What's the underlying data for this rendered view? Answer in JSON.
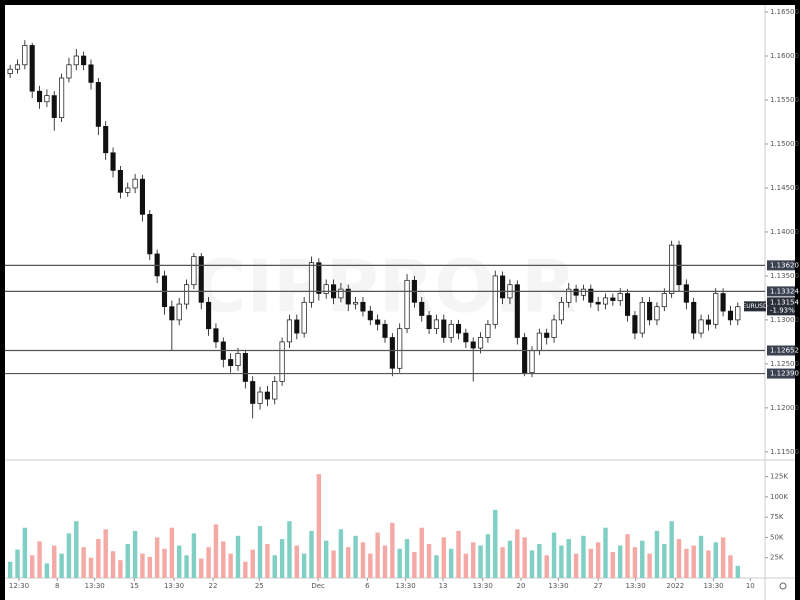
{
  "chart_data": {
    "type": "candlestick",
    "symbol": "EURUSD",
    "watermark": "CIPPRO.R",
    "open": [
      1.158,
      1.1585,
      1.159,
      1.1612,
      1.156,
      1.1548,
      1.1555,
      1.153,
      1.1575,
      1.159,
      1.16,
      1.159,
      1.157,
      1.152,
      1.149,
      1.147,
      1.1445,
      1.145,
      1.146,
      1.142,
      1.1375,
      1.135,
      1.1315,
      1.13,
      1.1318,
      1.134,
      1.1372,
      1.132,
      1.129,
      1.1275,
      1.1255,
      1.1248,
      1.1262,
      1.123,
      1.1205,
      1.1218,
      1.121,
      1.123,
      1.1275,
      1.13,
      1.1285,
      1.132,
      1.1365,
      1.133,
      1.134,
      1.1325,
      1.1335,
      1.1318,
      1.132,
      1.131,
      1.13,
      1.1295,
      1.128,
      1.1245,
      1.129,
      1.1345,
      1.132,
      1.1305,
      1.129,
      1.13,
      1.128,
      1.1295,
      1.1285,
      1.1275,
      1.1268,
      1.128,
      1.1295,
      1.135,
      1.1325,
      1.134,
      1.128,
      1.124,
      1.1265,
      1.1285,
      1.128,
      1.13,
      1.132,
      1.1335,
      1.1328,
      1.1335,
      1.132,
      1.1318,
      1.1325,
      1.1322,
      1.133,
      1.1305,
      1.1285,
      1.132,
      1.13,
      1.1315,
      1.133,
      1.1385,
      1.134,
      1.132,
      1.1285,
      1.13,
      1.1295,
      1.133,
      1.131,
      1.13
    ],
    "high": [
      1.159,
      1.1596,
      1.1618,
      1.1615,
      1.1566,
      1.1562,
      1.156,
      1.158,
      1.1598,
      1.1608,
      1.1605,
      1.1596,
      1.1575,
      1.1526,
      1.1496,
      1.1475,
      1.1456,
      1.1466,
      1.1465,
      1.1425,
      1.138,
      1.1356,
      1.1322,
      1.1325,
      1.1346,
      1.1376,
      1.1376,
      1.1326,
      1.1296,
      1.128,
      1.1262,
      1.1268,
      1.1266,
      1.1236,
      1.1224,
      1.1225,
      1.1236,
      1.128,
      1.1306,
      1.1306,
      1.1326,
      1.1372,
      1.137,
      1.1346,
      1.1346,
      1.1342,
      1.134,
      1.1326,
      1.1326,
      1.1316,
      1.1306,
      1.13,
      1.1285,
      1.1296,
      1.1352,
      1.135,
      1.1326,
      1.131,
      1.1306,
      1.1306,
      1.13,
      1.13,
      1.129,
      1.128,
      1.1286,
      1.13,
      1.1356,
      1.1355,
      1.1346,
      1.1345,
      1.1285,
      1.127,
      1.129,
      1.129,
      1.1306,
      1.1326,
      1.1342,
      1.134,
      1.134,
      1.134,
      1.1326,
      1.133,
      1.133,
      1.1336,
      1.1335,
      1.131,
      1.1326,
      1.1326,
      1.132,
      1.1336,
      1.139,
      1.139,
      1.1346,
      1.1325,
      1.1306,
      1.1306,
      1.1336,
      1.1336,
      1.1316,
      1.132
    ],
    "low": [
      1.1575,
      1.158,
      1.1585,
      1.1552,
      1.154,
      1.1542,
      1.1515,
      1.1525,
      1.157,
      1.1584,
      1.1584,
      1.1562,
      1.151,
      1.1482,
      1.1462,
      1.1438,
      1.144,
      1.1444,
      1.1412,
      1.1368,
      1.1342,
      1.1306,
      1.1265,
      1.1294,
      1.1312,
      1.1335,
      1.1312,
      1.1282,
      1.1268,
      1.1246,
      1.124,
      1.1242,
      1.1222,
      1.1188,
      1.1198,
      1.1202,
      1.1204,
      1.1225,
      1.1268,
      1.1278,
      1.128,
      1.1314,
      1.1322,
      1.1324,
      1.1318,
      1.132,
      1.131,
      1.1312,
      1.1304,
      1.1294,
      1.1288,
      1.1274,
      1.1236,
      1.124,
      1.1285,
      1.1314,
      1.1298,
      1.1284,
      1.1284,
      1.1274,
      1.1274,
      1.1278,
      1.1268,
      1.123,
      1.1262,
      1.1274,
      1.129,
      1.1318,
      1.1318,
      1.1272,
      1.1236,
      1.1235,
      1.126,
      1.1272,
      1.1274,
      1.1295,
      1.1314,
      1.132,
      1.1322,
      1.1314,
      1.131,
      1.1312,
      1.1316,
      1.1316,
      1.1298,
      1.1278,
      1.128,
      1.1294,
      1.1294,
      1.131,
      1.1325,
      1.1332,
      1.1312,
      1.1278,
      1.128,
      1.1288,
      1.129,
      1.1304,
      1.1294,
      1.1294
    ],
    "close": [
      1.1585,
      1.159,
      1.1612,
      1.156,
      1.1548,
      1.1555,
      1.153,
      1.1575,
      1.159,
      1.16,
      1.159,
      1.157,
      1.152,
      1.149,
      1.147,
      1.1445,
      1.145,
      1.146,
      1.142,
      1.1375,
      1.135,
      1.1315,
      1.13,
      1.1318,
      1.134,
      1.1372,
      1.132,
      1.129,
      1.1275,
      1.1255,
      1.1248,
      1.1262,
      1.123,
      1.1205,
      1.1218,
      1.121,
      1.123,
      1.1275,
      1.13,
      1.1285,
      1.132,
      1.1365,
      1.133,
      1.134,
      1.1325,
      1.1335,
      1.1318,
      1.132,
      1.131,
      1.13,
      1.1295,
      1.128,
      1.1245,
      1.129,
      1.1345,
      1.132,
      1.1305,
      1.129,
      1.13,
      1.128,
      1.1295,
      1.1285,
      1.1275,
      1.1268,
      1.128,
      1.1295,
      1.135,
      1.1325,
      1.134,
      1.128,
      1.124,
      1.1265,
      1.1285,
      1.128,
      1.13,
      1.132,
      1.1335,
      1.1328,
      1.1335,
      1.132,
      1.1318,
      1.1325,
      1.1322,
      1.133,
      1.1305,
      1.1285,
      1.132,
      1.13,
      1.1315,
      1.133,
      1.1385,
      1.134,
      1.132,
      1.1285,
      1.13,
      1.1295,
      1.133,
      1.131,
      1.13,
      1.1315
    ],
    "volume": [
      20000,
      35000,
      62000,
      28000,
      45000,
      18000,
      40000,
      30000,
      55000,
      70000,
      38000,
      25000,
      48000,
      60000,
      33000,
      22000,
      42000,
      58000,
      30000,
      26000,
      50000,
      36000,
      62000,
      40000,
      28000,
      55000,
      24000,
      38000,
      66000,
      45000,
      30000,
      52000,
      20000,
      35000,
      64000,
      42000,
      28000,
      48000,
      70000,
      40000,
      30000,
      58000,
      128000,
      46000,
      34000,
      60000,
      38000,
      52000,
      44000,
      30000,
      56000,
      40000,
      68000,
      36000,
      48000,
      32000,
      62000,
      42000,
      28000,
      50000,
      36000,
      58000,
      30000,
      44000,
      40000,
      54000,
      84000,
      38000,
      46000,
      60000,
      50000,
      34000,
      42000,
      28000,
      56000,
      40000,
      48000,
      30000,
      52000,
      36000,
      44000,
      62000,
      32000,
      40000,
      54000,
      38000,
      46000,
      30000,
      58000,
      42000,
      70000,
      48000,
      36000,
      40000,
      52000,
      34000,
      44000,
      50000,
      28000,
      15000
    ],
    "up_color": "#ffffff",
    "down_color": "#111111",
    "volume_up_color": "#7fcfc4",
    "volume_down_color": "#f4a9a5",
    "xlim": [
      -0.7,
      102.7
    ],
    "xticks": [
      {
        "value": 1.2,
        "label": "12:30"
      },
      {
        "value": 6.4,
        "label": "8"
      },
      {
        "value": 11.5,
        "label": "13:30"
      },
      {
        "value": 16.9,
        "label": "15"
      },
      {
        "value": 22.3,
        "label": "13:30"
      },
      {
        "value": 27.6,
        "label": "22"
      },
      {
        "value": 33.9,
        "label": "25"
      },
      {
        "value": 41.9,
        "label": "Dec"
      },
      {
        "value": 48.6,
        "label": "6"
      },
      {
        "value": 53.8,
        "label": "13:30"
      },
      {
        "value": 58.9,
        "label": "13"
      },
      {
        "value": 64.3,
        "label": "13:30"
      },
      {
        "value": 69.5,
        "label": "20"
      },
      {
        "value": 74.6,
        "label": "13:30"
      },
      {
        "value": 80,
        "label": "27"
      },
      {
        "value": 85.1,
        "label": "13:30"
      },
      {
        "value": 90.5,
        "label": "2022"
      },
      {
        "value": 95.7,
        "label": "13:30"
      },
      {
        "value": 100.7,
        "label": "10"
      }
    ],
    "ylim": [
      1.1143,
      1.1658
    ],
    "yticks": [
      {
        "value": 1.115,
        "label": "1.11500"
      },
      {
        "value": 1.12,
        "label": "1.12000"
      },
      {
        "value": 1.125,
        "label": "1.12500"
      },
      {
        "value": 1.13,
        "label": "1.13000"
      },
      {
        "value": 1.135,
        "label": "1.13500"
      },
      {
        "value": 1.14,
        "label": "1.14000"
      },
      {
        "value": 1.145,
        "label": "1.14500"
      },
      {
        "value": 1.15,
        "label": "1.15000"
      },
      {
        "value": 1.155,
        "label": "1.15500"
      },
      {
        "value": 1.16,
        "label": "1.16000"
      },
      {
        "value": 1.165,
        "label": "1.16500"
      }
    ],
    "volume_ylim": [
      0,
      143000
    ],
    "volume_yticks": [
      {
        "value": 25000,
        "label": "25K"
      },
      {
        "value": 50000,
        "label": "50K"
      },
      {
        "value": 75000,
        "label": "75K"
      },
      {
        "value": 100000,
        "label": "100K"
      },
      {
        "value": 125000,
        "label": "125K"
      }
    ],
    "levels": [
      {
        "value": 1.1362,
        "label": "1.13620"
      },
      {
        "value": 1.13324,
        "label": "1.13324"
      },
      {
        "value": 1.12652,
        "label": "1.12652"
      },
      {
        "value": 1.1239,
        "label": "1.12390"
      }
    ],
    "last_price": {
      "value": 1.13154,
      "label": "1.13154"
    },
    "change": "-1.93%"
  }
}
